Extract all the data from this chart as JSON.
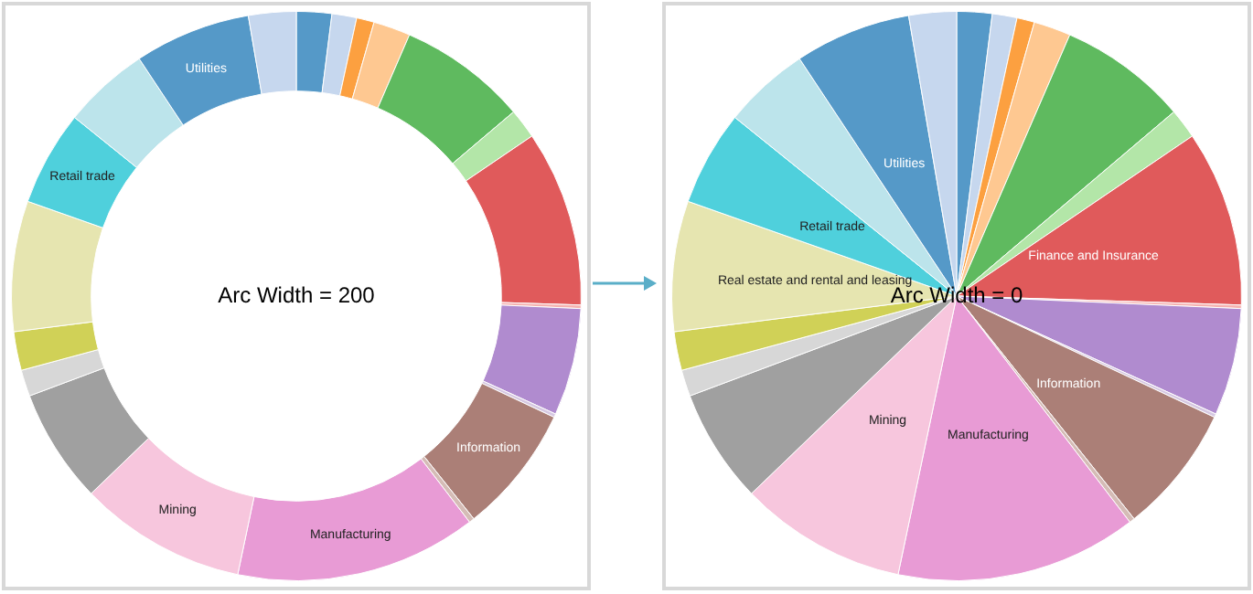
{
  "chart_data": [
    {
      "type": "donut",
      "annotations": [
        "Arc Width = 200"
      ],
      "categories": [
        null,
        null,
        null,
        null,
        null,
        null,
        null,
        null,
        null,
        null,
        "Information",
        null,
        "Manufacturing",
        "Mining",
        null,
        null,
        null,
        null,
        "Retail trade",
        null,
        "Utilities",
        null
      ],
      "values": [
        2.0,
        1.4,
        1.0,
        2.1,
        7.3,
        1.7,
        10.0,
        0.2,
        6.1,
        0.2,
        7.3,
        0.3,
        13.7,
        9.5,
        6.5,
        1.5,
        2.2,
        7.4,
        5.4,
        4.9,
        6.6,
        2.7
      ],
      "colors": [
        "#5599c8",
        "#c6d7ee",
        "#fca040",
        "#fec891",
        "#5fba5f",
        "#b3e6a8",
        "#e05a5b",
        "#f5b2b0",
        "#b08bcf",
        "#d6c8e2",
        "#ab7f77",
        "#d5bcb6",
        "#e89bd5",
        "#f7c6dd",
        "#a0a0a0",
        "#d7d7d7",
        "#d0d157",
        "#e6e5b0",
        "#4fd0dc",
        "#bce4eb",
        "#5599c8",
        "#c6d7ee"
      ]
    },
    {
      "type": "pie",
      "annotations": [
        "Arc Width = 0"
      ],
      "categories": [
        null,
        null,
        null,
        null,
        null,
        null,
        "Finance and Insurance",
        null,
        null,
        null,
        "Information",
        null,
        "Manufacturing",
        "Mining",
        null,
        null,
        null,
        "Real estate and rental and leasing",
        "Retail trade",
        null,
        "Utilities",
        null
      ],
      "values": [
        2.0,
        1.4,
        1.0,
        2.1,
        7.3,
        1.7,
        10.0,
        0.2,
        6.1,
        0.2,
        7.3,
        0.3,
        13.7,
        9.5,
        6.5,
        1.5,
        2.2,
        7.4,
        5.4,
        4.9,
        6.6,
        2.7
      ],
      "colors": [
        "#5599c8",
        "#c6d7ee",
        "#fca040",
        "#fec891",
        "#5fba5f",
        "#b3e6a8",
        "#e05a5b",
        "#f5b2b0",
        "#b08bcf",
        "#d6c8e2",
        "#ab7f77",
        "#d5bcb6",
        "#e89bd5",
        "#f7c6dd",
        "#a0a0a0",
        "#d7d7d7",
        "#d0d157",
        "#e6e5b0",
        "#4fd0dc",
        "#bce4eb",
        "#5599c8",
        "#c6d7ee"
      ]
    }
  ]
}
